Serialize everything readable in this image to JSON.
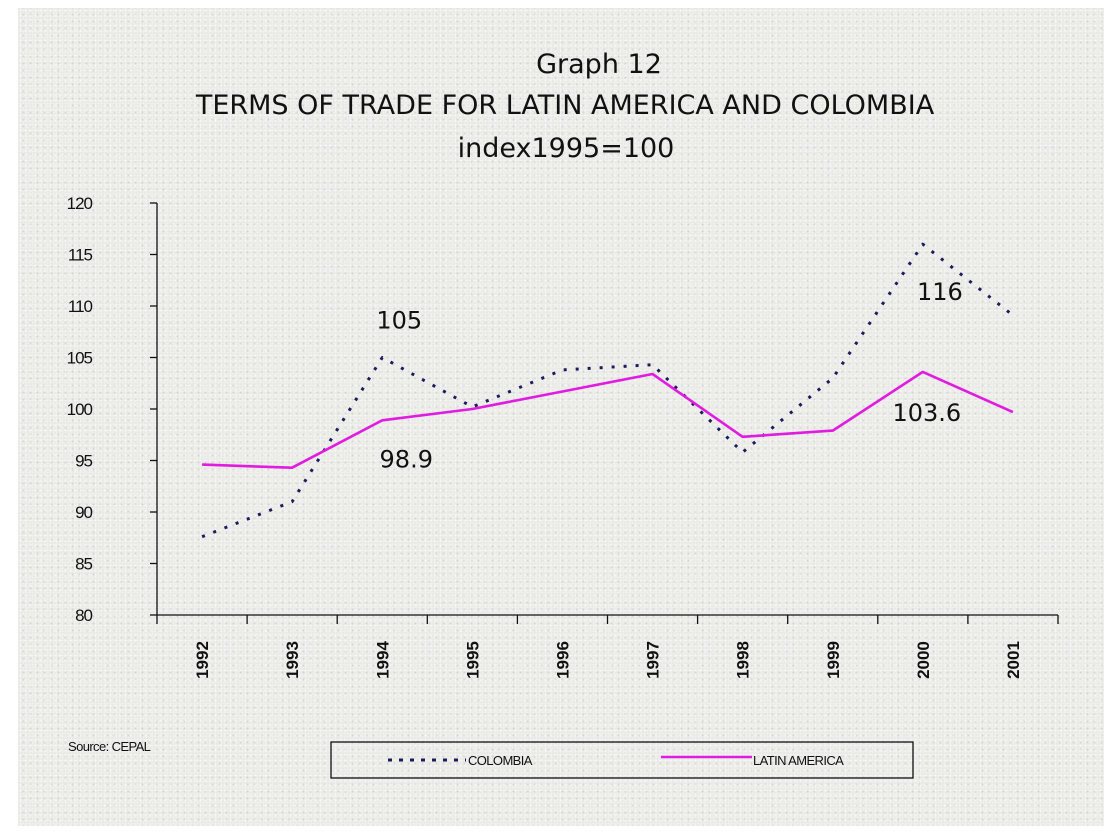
{
  "chart_data": {
    "type": "line",
    "title": "Graph 12",
    "subtitle": "TERMS OF TRADE FOR LATIN AMERICA AND COLOMBIA",
    "subtitle2": "index1995=100",
    "xlabel": "",
    "ylabel": "",
    "categories": [
      "1992",
      "1993",
      "1994",
      "1995",
      "1996",
      "1997",
      "1998",
      "1999",
      "2000",
      "2001"
    ],
    "ylim": [
      80,
      120
    ],
    "yticks": [
      80,
      85,
      90,
      95,
      100,
      105,
      110,
      115,
      120
    ],
    "grid": false,
    "legend": "bottom-center",
    "series": [
      {
        "name": "COLOMBIA",
        "style": "dotted",
        "color": "#1c1c5c",
        "values": [
          87.6,
          91.0,
          105.0,
          100.2,
          103.8,
          104.3,
          95.8,
          103.0,
          116.0,
          109.1
        ]
      },
      {
        "name": "LATIN AMERICA",
        "style": "solid",
        "color": "#e01ce0",
        "values": [
          94.6,
          94.3,
          98.9,
          100.0,
          101.7,
          103.4,
          97.3,
          97.9,
          103.6,
          99.7
        ]
      }
    ],
    "annotations": [
      {
        "text": "105",
        "series": "COLOMBIA",
        "category": "1994",
        "position": "above"
      },
      {
        "text": "98.9",
        "series": "LATIN AMERICA",
        "category": "1994",
        "position": "below"
      },
      {
        "text": "116",
        "series": "COLOMBIA",
        "category": "2000",
        "position": "below"
      },
      {
        "text": "103.6",
        "series": "LATIN AMERICA",
        "category": "2000",
        "position": "below"
      }
    ],
    "source": "Source: CEPAL"
  }
}
